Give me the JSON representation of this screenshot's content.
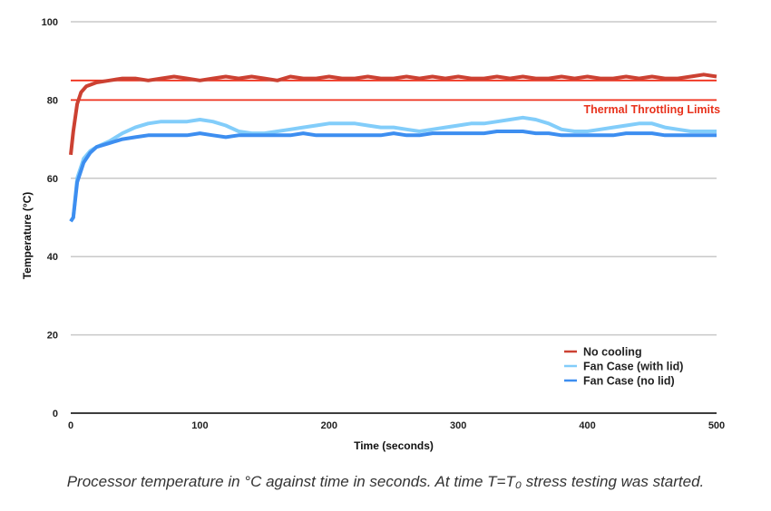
{
  "chart_data": {
    "type": "line",
    "title": "",
    "xlabel": "Time (seconds)",
    "ylabel": "Temperature (°C)",
    "xlim": [
      0,
      500
    ],
    "ylim": [
      0,
      100
    ],
    "xticks": [
      0,
      100,
      200,
      300,
      400,
      500
    ],
    "yticks": [
      0,
      20,
      40,
      60,
      80,
      100
    ],
    "grid": "horizontal",
    "legend": "bottom-right",
    "series": [
      {
        "name": "No cooling",
        "color": "#cc4132",
        "x": [
          0,
          2,
          5,
          8,
          12,
          16,
          20,
          30,
          40,
          50,
          60,
          70,
          80,
          90,
          100,
          110,
          120,
          130,
          140,
          150,
          160,
          170,
          180,
          190,
          200,
          210,
          220,
          230,
          240,
          250,
          260,
          270,
          280,
          290,
          300,
          310,
          320,
          330,
          340,
          350,
          360,
          370,
          380,
          390,
          400,
          410,
          420,
          430,
          440,
          450,
          460,
          470,
          480,
          490,
          500
        ],
        "y": [
          66,
          72,
          79,
          82,
          83.5,
          84,
          84.5,
          85,
          85.5,
          85.5,
          85,
          85.5,
          86,
          85.5,
          85,
          85.5,
          86,
          85.5,
          86,
          85.5,
          85,
          86,
          85.5,
          85.5,
          86,
          85.5,
          85.5,
          86,
          85.5,
          85.5,
          86,
          85.5,
          86,
          85.5,
          86,
          85.5,
          85.5,
          86,
          85.5,
          86,
          85.5,
          85.5,
          86,
          85.5,
          86,
          85.5,
          85.5,
          86,
          85.5,
          86,
          85.5,
          85.5,
          86,
          86.5,
          86
        ]
      },
      {
        "name": "Fan Case (with lid)",
        "color": "#82cdfa",
        "x": [
          0,
          2,
          5,
          10,
          15,
          20,
          30,
          40,
          50,
          60,
          70,
          80,
          90,
          100,
          110,
          120,
          130,
          140,
          150,
          160,
          170,
          180,
          190,
          200,
          210,
          220,
          230,
          240,
          250,
          260,
          270,
          280,
          290,
          300,
          310,
          320,
          330,
          340,
          350,
          360,
          370,
          380,
          390,
          400,
          410,
          420,
          430,
          440,
          450,
          460,
          470,
          480,
          490,
          500
        ],
        "y": [
          49,
          50,
          60,
          65,
          67,
          68,
          69.5,
          71.5,
          73,
          74,
          74.5,
          74.5,
          74.5,
          75,
          74.5,
          73.5,
          72,
          71.5,
          71.5,
          72,
          72.5,
          73,
          73.5,
          74,
          74,
          74,
          73.5,
          73,
          73,
          72.5,
          72,
          72.5,
          73,
          73.5,
          74,
          74,
          74.5,
          75,
          75.5,
          75,
          74,
          72.5,
          72,
          72,
          72.5,
          73,
          73.5,
          74,
          74,
          73,
          72.5,
          72,
          72,
          72
        ]
      },
      {
        "name": "Fan Case (no lid)",
        "color": "#3d8ef0",
        "x": [
          0,
          2,
          5,
          10,
          15,
          20,
          30,
          40,
          50,
          60,
          70,
          80,
          90,
          100,
          110,
          120,
          130,
          140,
          150,
          160,
          170,
          180,
          190,
          200,
          210,
          220,
          230,
          240,
          250,
          260,
          270,
          280,
          290,
          300,
          310,
          320,
          330,
          340,
          350,
          360,
          370,
          380,
          390,
          400,
          410,
          420,
          430,
          440,
          450,
          460,
          470,
          480,
          490,
          500
        ],
        "y": [
          49,
          50,
          59,
          64,
          66.5,
          68,
          69,
          70,
          70.5,
          71,
          71,
          71,
          71,
          71.5,
          71,
          70.5,
          71,
          71,
          71,
          71,
          71,
          71.5,
          71,
          71,
          71,
          71,
          71,
          71,
          71.5,
          71,
          71,
          71.5,
          71.5,
          71.5,
          71.5,
          71.5,
          72,
          72,
          72,
          71.5,
          71.5,
          71,
          71,
          71,
          71,
          71,
          71.5,
          71.5,
          71.5,
          71,
          71,
          71,
          71,
          71
        ]
      }
    ],
    "reference_lines": [
      {
        "y": 85,
        "color": "#f0301c"
      },
      {
        "y": 80,
        "color": "#f0301c"
      }
    ],
    "annotations": [
      {
        "text": "Thermal Throttling Limits",
        "x": 450,
        "y": 77.5,
        "color": "#e8321c"
      }
    ]
  },
  "caption": "Processor temperature in °C against time in seconds. At time T=T₀ stress testing was started."
}
